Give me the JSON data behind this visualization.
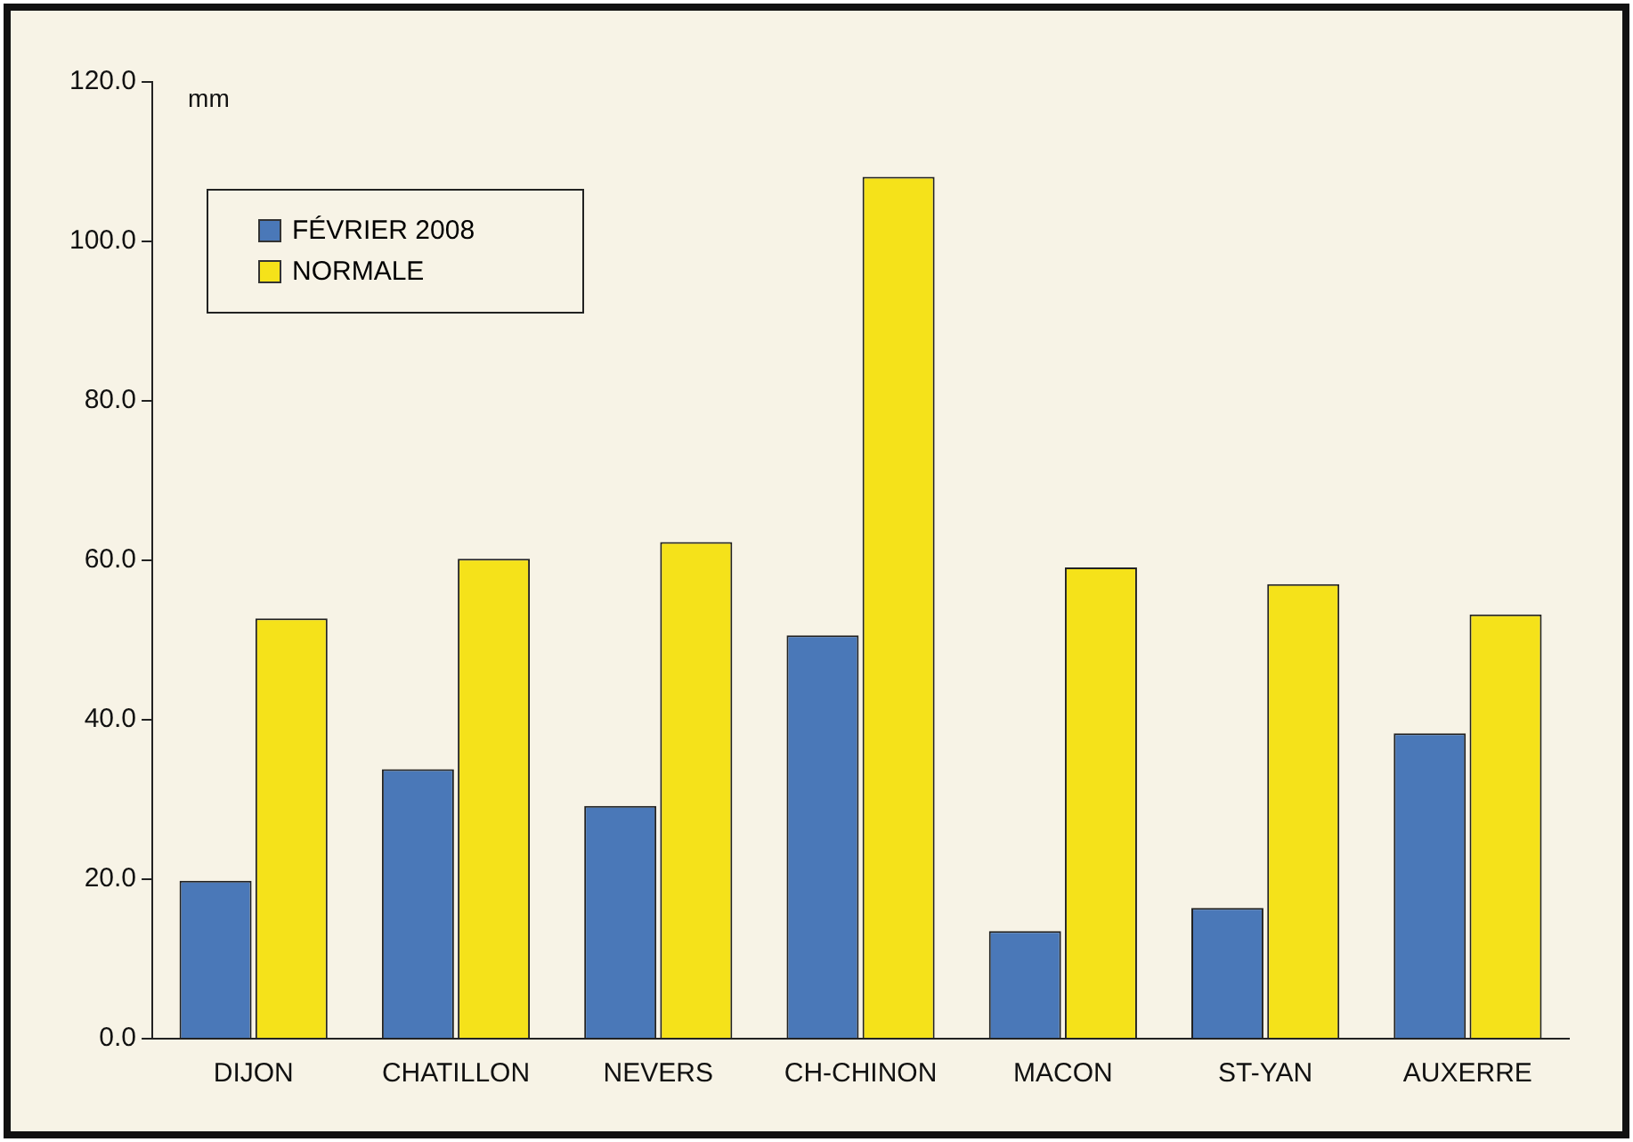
{
  "chart_data": {
    "type": "bar",
    "ylabel": "mm",
    "categories": [
      "DIJON",
      "CHATILLON",
      "NEVERS",
      "CH-CHINON",
      "MACON",
      "ST-YAN",
      "AUXERRE"
    ],
    "series": [
      {
        "name": "FÉVRIER 2008",
        "color": "#4a78b8",
        "values": [
          19.8,
          33.8,
          29.2,
          50.6,
          13.5,
          16.4,
          38.3
        ]
      },
      {
        "name": "NORMALE",
        "color": "#f5e21a",
        "values": [
          52.7,
          60.2,
          62.3,
          108.1,
          59.1,
          57.0,
          53.2
        ]
      }
    ],
    "ylim": [
      0,
      120
    ],
    "yticks": [
      {
        "value": 0,
        "label": "0.0"
      },
      {
        "value": 20,
        "label": "20.0"
      },
      {
        "value": 40,
        "label": "40.0"
      },
      {
        "value": 60,
        "label": "60.0"
      },
      {
        "value": 80,
        "label": "80.0"
      },
      {
        "value": 100,
        "label": "100.0"
      },
      {
        "value": 120,
        "label": "120.0"
      }
    ],
    "grid": false,
    "legend": "top left"
  }
}
